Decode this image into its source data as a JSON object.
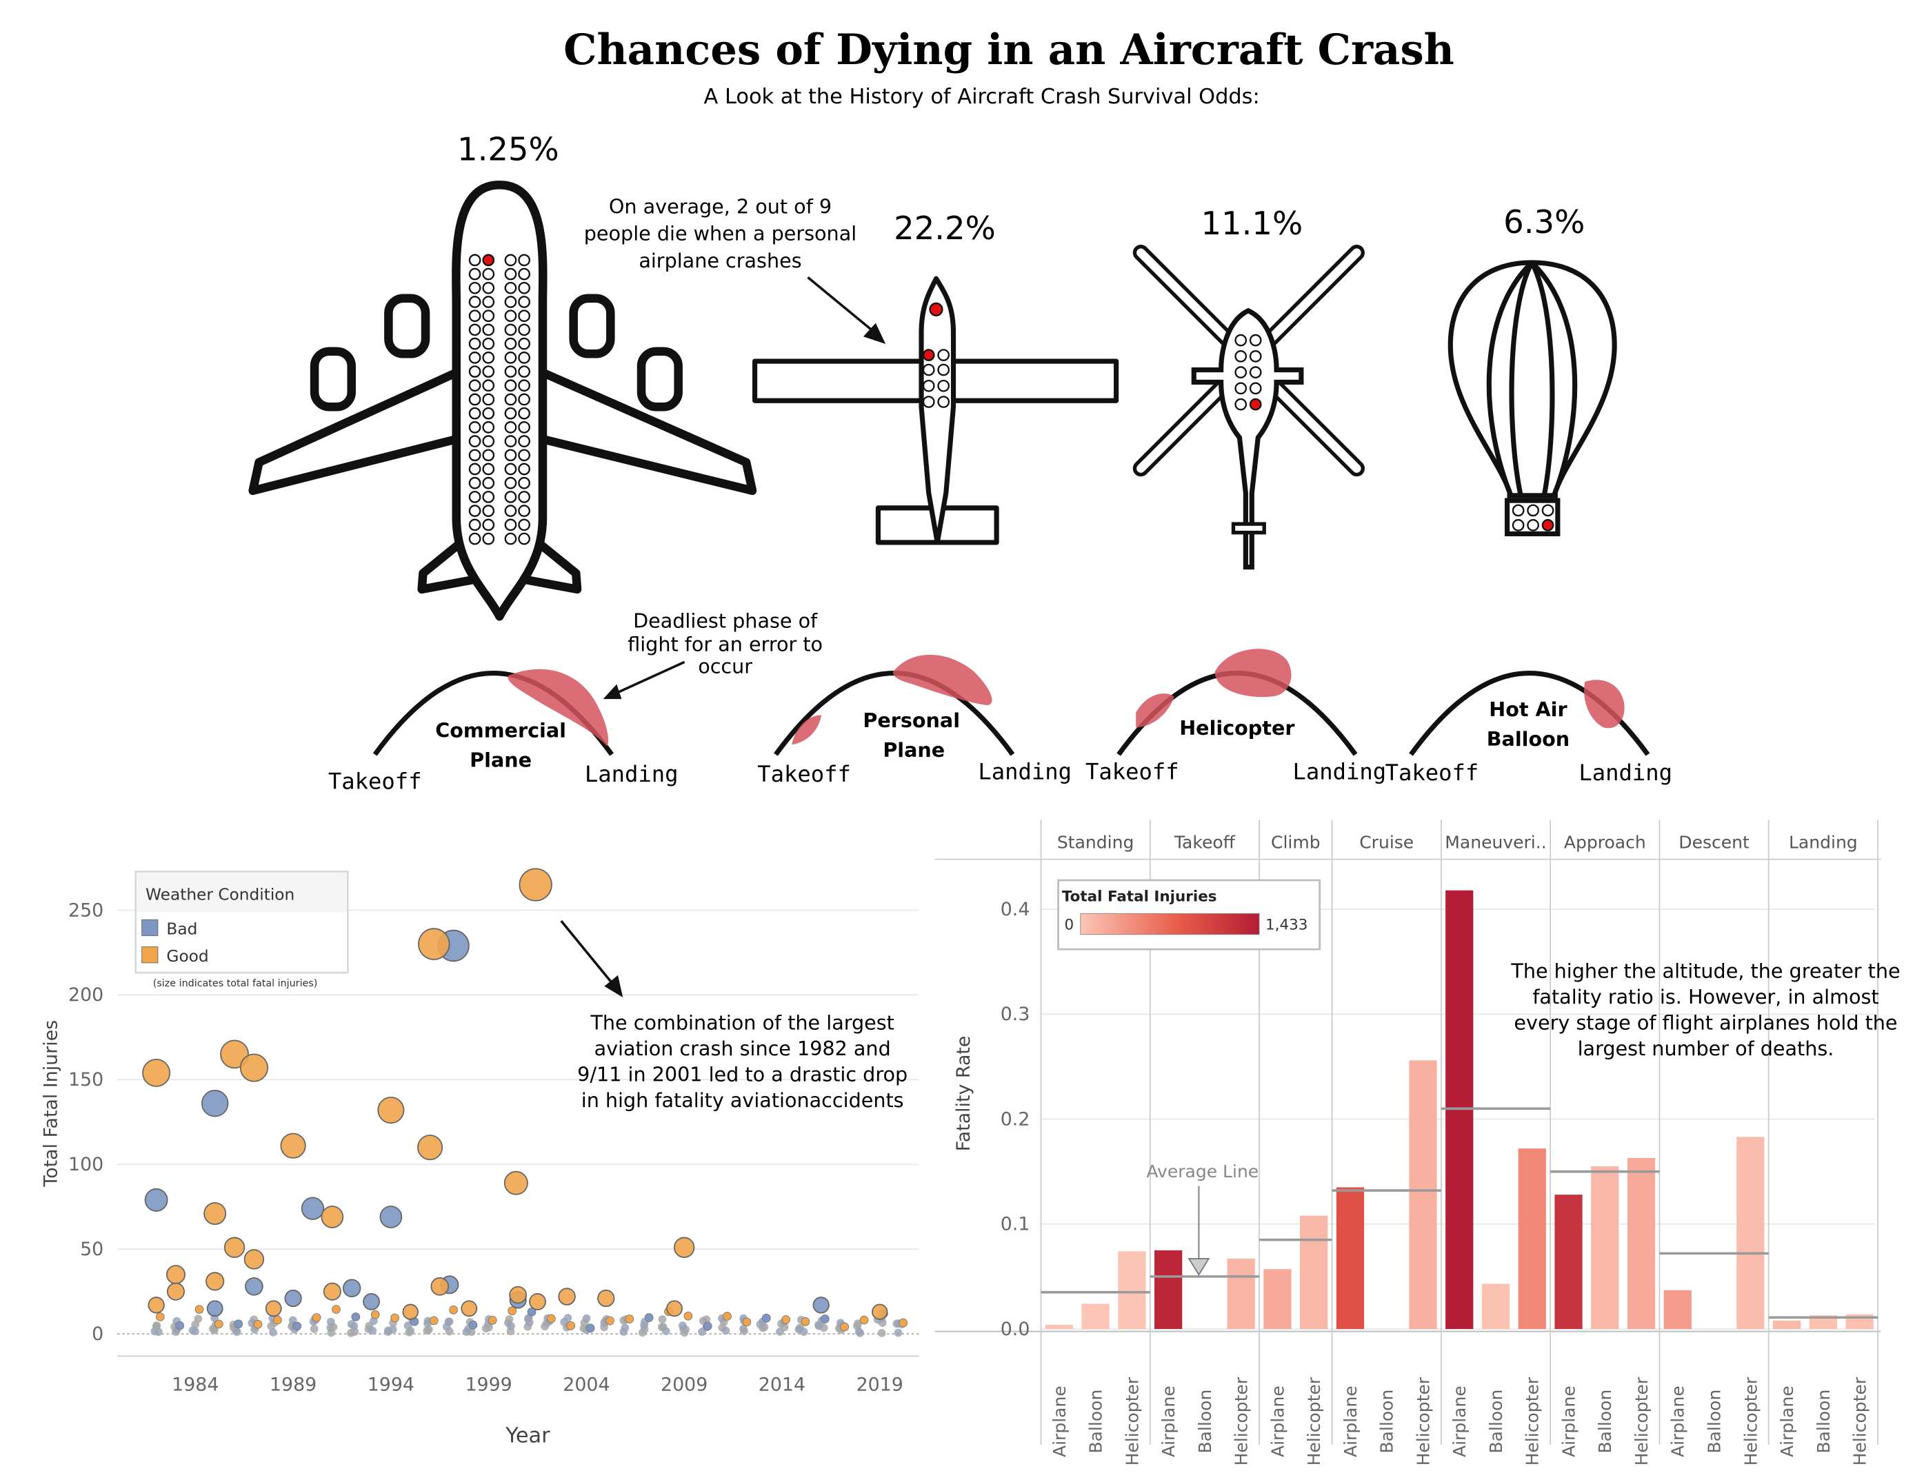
{
  "header": {
    "title": "Chances of Dying in an Aircraft Crash",
    "subtitle": "A Look at the History of Aircraft Crash Survival Odds:"
  },
  "aircraft": [
    {
      "name": "commercial-plane",
      "pct": "1.25%"
    },
    {
      "name": "personal-plane",
      "pct": "22.2%"
    },
    {
      "name": "helicopter",
      "pct": "11.1%"
    },
    {
      "name": "hot-air-balloon",
      "pct": "6.3%"
    }
  ],
  "annotations": {
    "personal": [
      "On average, 2 out of 9",
      "people die when a personal",
      "airplane crashes"
    ],
    "deadliest": [
      "Deadliest phase of",
      "flight for an error to",
      "occur"
    ],
    "scatter_note": [
      "The combination of the largest",
      "aviation crash since 1982 and",
      "9/11 in 2001 led to a drastic drop",
      "in high fatality aviationaccidents"
    ],
    "bar_note": [
      "The higher the altitude, the greater the",
      "fatality ratio is. However,  in almost",
      "every stage of flight airplanes hold the",
      "largest number of deaths."
    ],
    "average_line": "Average Line"
  },
  "phases": [
    {
      "name": [
        "Commercial",
        "Plane"
      ],
      "takeoff": "Takeoff",
      "landing": "Landing"
    },
    {
      "name": [
        "Personal",
        "Plane"
      ],
      "takeoff": "Takeoff",
      "landing": "Landing"
    },
    {
      "name": [
        "Helicopter"
      ],
      "takeoff": "Takeoff",
      "landing": "Landing"
    },
    {
      "name": [
        "Hot Air",
        "Balloon"
      ],
      "takeoff": "Takeoff",
      "landing": "Landing"
    }
  ],
  "colors": {
    "bad": "#7d97c2",
    "good": "#f0a54c",
    "low": "#fcc5b5",
    "high": "#b31d35",
    "highlight": "#d3545e",
    "grid": "#e8e8e8"
  },
  "chart_data": [
    {
      "type": "scatter",
      "xlabel": "Year",
      "ylabel": "Total Fatal Injuries",
      "xlim": [
        1980,
        2021
      ],
      "ylim": [
        0,
        280
      ],
      "xticks": [
        "1984",
        "1989",
        "1994",
        "1999",
        "2004",
        "2009",
        "2014",
        "2019"
      ],
      "yticks": [
        "0",
        "50",
        "100",
        "150",
        "200",
        "250"
      ],
      "legend": {
        "title": "Weather Condition",
        "entries": [
          "Bad",
          "Good"
        ],
        "note": "(size indicates total fatal injuries)",
        "position": "top-left"
      },
      "series": [
        {
          "name": "Bad",
          "points": [
            [
              1982,
              79
            ],
            [
              1985,
              136
            ],
            [
              1990,
              74
            ],
            [
              1994,
              69
            ],
            [
              1997.2,
              229
            ],
            [
              1987,
              28
            ],
            [
              1992,
              27
            ],
            [
              1997,
              29
            ],
            [
              2000.5,
              20
            ],
            [
              2016,
              17
            ],
            [
              1993,
              19
            ],
            [
              1985,
              15
            ],
            [
              1989,
              21
            ]
          ]
        },
        {
          "name": "Good",
          "points": [
            [
              1982,
              154
            ],
            [
              1986,
              165
            ],
            [
              1987,
              157
            ],
            [
              1989,
              111
            ],
            [
              1994,
              132
            ],
            [
              1996,
              110
            ],
            [
              1996.2,
              230
            ],
            [
              2001.4,
              265
            ],
            [
              2000.4,
              89
            ],
            [
              1985,
              71
            ],
            [
              1991,
              69
            ],
            [
              1986,
              51
            ],
            [
              1987,
              44
            ],
            [
              1983,
              35
            ],
            [
              1985,
              31
            ],
            [
              1983,
              25
            ],
            [
              2009,
              51
            ],
            [
              2000.5,
              23
            ],
            [
              2001.5,
              19
            ],
            [
              2003,
              22
            ],
            [
              2005,
              21
            ],
            [
              1996.5,
              28
            ],
            [
              1991,
              25
            ],
            [
              1982,
              17
            ],
            [
              1988,
              15
            ],
            [
              1998,
              15
            ],
            [
              2008.5,
              15
            ],
            [
              2019,
              13
            ],
            [
              1995,
              13
            ]
          ]
        }
      ]
    },
    {
      "type": "bar",
      "ylabel": "Fatality Rate",
      "ylim": [
        0,
        0.43
      ],
      "yticks": [
        "0.0",
        "0.1",
        "0.2",
        "0.3",
        "0.4"
      ],
      "color_legend": {
        "title": "Total Fatal Injuries",
        "min": "0",
        "max": "1,433",
        "position": "top-left"
      },
      "groups": [
        {
          "phase": "Standing",
          "avg": 0.035,
          "bars": [
            {
              "type": "Airplane",
              "value": 0.004,
              "fatal": 5
            },
            {
              "type": "Balloon",
              "value": 0.024,
              "fatal": 3
            },
            {
              "type": "Helicopter",
              "value": 0.074,
              "fatal": 10
            }
          ]
        },
        {
          "phase": "Takeoff",
          "avg": 0.05,
          "bars": [
            {
              "type": "Airplane",
              "value": 0.075,
              "fatal": 1350
            },
            {
              "type": "Balloon",
              "value": 0.0,
              "fatal": 0
            },
            {
              "type": "Helicopter",
              "value": 0.067,
              "fatal": 120
            }
          ]
        },
        {
          "phase": "Climb",
          "avg": 0.085,
          "bars": [
            {
              "type": "Airplane",
              "value": 0.057,
              "fatal": 200
            },
            {
              "type": "Helicopter",
              "value": 0.108,
              "fatal": 100
            }
          ]
        },
        {
          "phase": "Cruise",
          "avg": 0.132,
          "bars": [
            {
              "type": "Airplane",
              "value": 0.135,
              "fatal": 900
            },
            {
              "type": "Balloon",
              "value": 0.0,
              "fatal": 0
            },
            {
              "type": "Helicopter",
              "value": 0.256,
              "fatal": 150
            }
          ]
        },
        {
          "phase": "Maneuveri..",
          "avg": 0.21,
          "bars": [
            {
              "type": "Airplane",
              "value": 0.418,
              "fatal": 1433
            },
            {
              "type": "Balloon",
              "value": 0.043,
              "fatal": 20
            },
            {
              "type": "Helicopter",
              "value": 0.172,
              "fatal": 450
            }
          ]
        },
        {
          "phase": "Approach",
          "avg": 0.15,
          "bars": [
            {
              "type": "Airplane",
              "value": 0.128,
              "fatal": 1200
            },
            {
              "type": "Balloon",
              "value": 0.155,
              "fatal": 100
            },
            {
              "type": "Helicopter",
              "value": 0.163,
              "fatal": 200
            }
          ]
        },
        {
          "phase": "Descent",
          "avg": 0.072,
          "bars": [
            {
              "type": "Airplane",
              "value": 0.037,
              "fatal": 300
            },
            {
              "type": "Balloon",
              "value": 0.0,
              "fatal": 0
            },
            {
              "type": "Helicopter",
              "value": 0.183,
              "fatal": 60
            }
          ]
        },
        {
          "phase": "Landing",
          "avg": 0.011,
          "bars": [
            {
              "type": "Airplane",
              "value": 0.008,
              "fatal": 90
            },
            {
              "type": "Balloon",
              "value": 0.013,
              "fatal": 20
            },
            {
              "type": "Helicopter",
              "value": 0.014,
              "fatal": 40
            }
          ]
        }
      ]
    }
  ]
}
